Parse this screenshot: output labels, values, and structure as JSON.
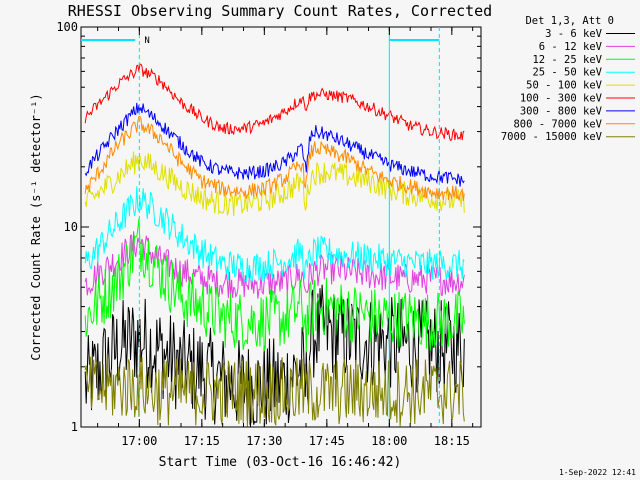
{
  "chart_data": {
    "type": "line",
    "title": "RHESSI Observing Summary Count Rates, Corrected",
    "xlabel": "Start Time (03-Oct-16 16:46:42)",
    "ylabel": "Corrected Count Rate (s⁻¹ detector⁻¹)",
    "yscale": "log",
    "ylim": [
      1,
      100
    ],
    "y_tick_labels": [
      "1",
      "10",
      "100"
    ],
    "xlim_minutes": [
      -14,
      82
    ],
    "x_tick_labels": [
      "17:00",
      "17:15",
      "17:30",
      "17:45",
      "18:00",
      "18:15"
    ],
    "x_tick_values": [
      0,
      15,
      30,
      45,
      60,
      75
    ],
    "grid": false,
    "legend_placement": "right-outside-top",
    "legend_title": "Det 1,3, Att 0",
    "annotations": {
      "night_markers": {
        "color": "#00e5ff",
        "label": "N"
      }
    },
    "series": [
      {
        "name": "3 - 6 keV",
        "color": "#000000",
        "x": [
          -13,
          -5,
          0,
          5,
          10,
          15,
          20,
          25,
          30,
          35,
          39,
          40,
          41,
          42,
          45,
          50,
          55,
          60,
          65,
          70,
          75,
          78
        ],
        "values": [
          1.6,
          2.5,
          2.8,
          2.4,
          2.0,
          1.9,
          1.7,
          1.6,
          1.6,
          1.7,
          2.0,
          1.5,
          2.7,
          3.0,
          3.0,
          2.8,
          2.7,
          2.6,
          2.6,
          2.5,
          2.5,
          2.5
        ]
      },
      {
        "name": "6 - 12 keV",
        "color": "#e040e0",
        "x": [
          -13,
          -5,
          0,
          5,
          10,
          15,
          20,
          25,
          30,
          35,
          39,
          40,
          41,
          42,
          45,
          50,
          55,
          60,
          65,
          70,
          75,
          78
        ],
        "values": [
          5.2,
          7.0,
          8.5,
          6.8,
          6.0,
          5.5,
          5.3,
          5.2,
          5.2,
          5.3,
          5.8,
          4.8,
          5.8,
          6.0,
          6.2,
          6.0,
          5.8,
          5.6,
          5.5,
          5.5,
          5.4,
          5.4
        ]
      },
      {
        "name": "12 - 25 keV",
        "color": "#00ff00",
        "x": [
          -13,
          -5,
          0,
          5,
          10,
          15,
          20,
          25,
          30,
          35,
          39,
          40,
          41,
          42,
          45,
          50,
          55,
          60,
          65,
          70,
          75,
          78
        ],
        "values": [
          3.5,
          5.5,
          8.5,
          6.0,
          4.5,
          4.0,
          3.5,
          3.4,
          3.4,
          3.5,
          4.0,
          3.2,
          3.8,
          4.0,
          4.0,
          3.8,
          3.6,
          3.5,
          3.5,
          3.4,
          3.4,
          3.4
        ]
      },
      {
        "name": "25 - 50 keV",
        "color": "#00ffff",
        "x": [
          -13,
          -5,
          0,
          5,
          10,
          15,
          20,
          25,
          30,
          35,
          39,
          40,
          41,
          42,
          45,
          50,
          55,
          60,
          65,
          70,
          75,
          78
        ],
        "values": [
          6.5,
          10.5,
          14.0,
          11.5,
          9.0,
          7.5,
          6.5,
          6.3,
          6.4,
          6.8,
          7.5,
          5.8,
          7.0,
          7.5,
          7.5,
          7.2,
          7.0,
          6.8,
          6.6,
          6.5,
          6.5,
          6.4
        ]
      },
      {
        "name": "50 - 100 keV",
        "color": "#e0e000",
        "x": [
          -13,
          -5,
          0,
          5,
          10,
          15,
          20,
          25,
          30,
          35,
          39,
          40,
          41,
          42,
          45,
          50,
          55,
          60,
          65,
          70,
          75,
          78
        ],
        "values": [
          13.0,
          18.0,
          22.0,
          19.0,
          16.0,
          14.0,
          13.0,
          13.0,
          13.5,
          15.0,
          17.0,
          13.0,
          17.5,
          18.5,
          19.0,
          18.0,
          17.0,
          15.5,
          14.5,
          14.0,
          13.5,
          13.5
        ]
      },
      {
        "name": "100 - 300 keV",
        "color": "#ff0000",
        "x": [
          -13,
          -5,
          0,
          5,
          10,
          15,
          20,
          25,
          30,
          35,
          39,
          40,
          41,
          42,
          45,
          50,
          55,
          60,
          65,
          70,
          75,
          78
        ],
        "values": [
          35.0,
          52.0,
          62.0,
          54.0,
          42.0,
          35.0,
          31.0,
          31.0,
          33.0,
          38.0,
          44.0,
          40.0,
          45.0,
          46.0,
          46.0,
          44.0,
          40.0,
          36.0,
          32.0,
          30.0,
          29.0,
          28.5
        ]
      },
      {
        "name": "300 - 800 keV",
        "color": "#0000ff",
        "x": [
          -13,
          -5,
          0,
          5,
          10,
          15,
          20,
          25,
          30,
          35,
          39,
          40,
          41,
          42,
          45,
          50,
          55,
          60,
          65,
          70,
          75,
          78
        ],
        "values": [
          19.0,
          31.0,
          40.0,
          33.0,
          26.0,
          21.0,
          19.0,
          18.5,
          19.0,
          21.0,
          25.0,
          19.0,
          28.0,
          30.0,
          29.0,
          26.0,
          23.0,
          20.5,
          19.0,
          18.0,
          17.5,
          17.0
        ]
      },
      {
        "name": "800 - 7000 keV",
        "color": "#ff8c00",
        "x": [
          -13,
          -5,
          0,
          5,
          10,
          15,
          20,
          25,
          30,
          35,
          39,
          40,
          41,
          42,
          45,
          50,
          55,
          60,
          65,
          70,
          75,
          78
        ],
        "values": [
          15.0,
          26.0,
          33.0,
          28.0,
          21.0,
          17.0,
          15.5,
          15.0,
          15.5,
          17.5,
          21.0,
          16.0,
          23.0,
          25.0,
          24.0,
          22.0,
          19.0,
          17.0,
          16.0,
          15.0,
          14.8,
          14.5
        ]
      },
      {
        "name": "7000 - 15000 keV",
        "color": "#808000",
        "x": [
          -13,
          -5,
          0,
          5,
          10,
          15,
          20,
          25,
          30,
          35,
          39,
          40,
          41,
          42,
          45,
          50,
          55,
          60,
          65,
          70,
          75,
          78
        ],
        "values": [
          1.5,
          1.6,
          1.6,
          1.5,
          1.5,
          1.5,
          1.5,
          1.5,
          1.5,
          1.5,
          1.5,
          1.5,
          1.5,
          1.5,
          1.5,
          1.5,
          1.5,
          1.5,
          1.5,
          1.5,
          1.5,
          1.5
        ]
      }
    ]
  },
  "footer": {
    "timestamp": "1-Sep-2022 12:41"
  }
}
